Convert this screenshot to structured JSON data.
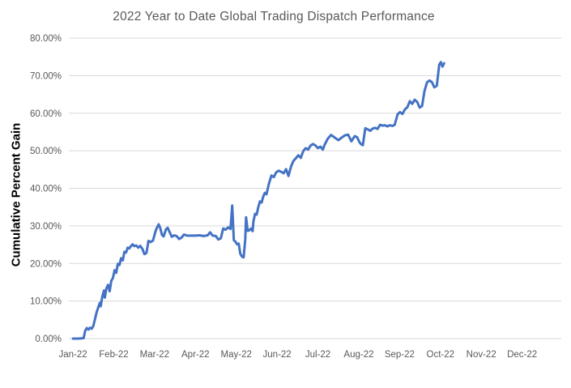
{
  "chart_data": {
    "type": "line",
    "title": "2022 Year to Date Global Trading Dispatch Performance",
    "xlabel": "",
    "ylabel": "Cumulative Percent Gain",
    "x_tick_labels": [
      "Jan-22",
      "Feb-22",
      "Mar-22",
      "Apr-22",
      "May-22",
      "Jun-22",
      "Jul-22",
      "Aug-22",
      "Sep-22",
      "Oct-22",
      "Nov-22",
      "Dec-22"
    ],
    "y_ticks": [
      0,
      10,
      20,
      30,
      40,
      50,
      60,
      70,
      80
    ],
    "y_tick_labels": [
      "0.00%",
      "10.00%",
      "20.00%",
      "30.00%",
      "40.00%",
      "50.00%",
      "60.00%",
      "70.00%",
      "80.00%"
    ],
    "ylim": [
      0,
      80
    ],
    "grid": true,
    "legend": false,
    "colors": {
      "line": "#4472C4",
      "gridline": "#D9D9D9",
      "tick_text": "#595959",
      "title_text": "#595959",
      "y_axis_title_text": "#000000",
      "background": "#FFFFFF"
    },
    "series": [
      {
        "name": "Cumulative Percent Gain",
        "points": [
          [
            0.0,
            0.0
          ],
          [
            0.13,
            0.0
          ],
          [
            0.26,
            0.1
          ],
          [
            0.3,
            2.1
          ],
          [
            0.34,
            2.8
          ],
          [
            0.38,
            2.4
          ],
          [
            0.42,
            2.9
          ],
          [
            0.46,
            2.6
          ],
          [
            0.5,
            3.4
          ],
          [
            0.54,
            5.2
          ],
          [
            0.58,
            7.0
          ],
          [
            0.62,
            8.3
          ],
          [
            0.66,
            9.5
          ],
          [
            0.68,
            8.6
          ],
          [
            0.72,
            11.2
          ],
          [
            0.76,
            12.8
          ],
          [
            0.78,
            10.9
          ],
          [
            0.82,
            13.4
          ],
          [
            0.86,
            14.3
          ],
          [
            0.9,
            12.6
          ],
          [
            0.94,
            15.4
          ],
          [
            0.98,
            16.1
          ],
          [
            1.02,
            18.2
          ],
          [
            1.06,
            17.5
          ],
          [
            1.1,
            19.9
          ],
          [
            1.14,
            19.6
          ],
          [
            1.18,
            21.4
          ],
          [
            1.22,
            20.8
          ],
          [
            1.26,
            23.1
          ],
          [
            1.3,
            22.9
          ],
          [
            1.34,
            24.2
          ],
          [
            1.38,
            24.0
          ],
          [
            1.42,
            24.6
          ],
          [
            1.46,
            25.1
          ],
          [
            1.5,
            24.6
          ],
          [
            1.55,
            24.8
          ],
          [
            1.6,
            24.2
          ],
          [
            1.65,
            24.7
          ],
          [
            1.7,
            23.9
          ],
          [
            1.75,
            22.5
          ],
          [
            1.8,
            22.8
          ],
          [
            1.85,
            26.0
          ],
          [
            1.9,
            25.7
          ],
          [
            1.96,
            26.1
          ],
          [
            2.02,
            28.5
          ],
          [
            2.06,
            29.6
          ],
          [
            2.1,
            30.4
          ],
          [
            2.14,
            29.4
          ],
          [
            2.18,
            27.6
          ],
          [
            2.22,
            27.2
          ],
          [
            2.28,
            29.1
          ],
          [
            2.32,
            29.5
          ],
          [
            2.38,
            28.1
          ],
          [
            2.42,
            27.1
          ],
          [
            2.48,
            27.5
          ],
          [
            2.54,
            27.3
          ],
          [
            2.6,
            26.5
          ],
          [
            2.66,
            26.9
          ],
          [
            2.72,
            27.7
          ],
          [
            2.8,
            27.4
          ],
          [
            2.9,
            27.4
          ],
          [
            3.0,
            27.4
          ],
          [
            3.1,
            27.5
          ],
          [
            3.2,
            27.3
          ],
          [
            3.3,
            27.5
          ],
          [
            3.36,
            28.3
          ],
          [
            3.42,
            27.4
          ],
          [
            3.5,
            27.3
          ],
          [
            3.56,
            26.4
          ],
          [
            3.62,
            26.7
          ],
          [
            3.68,
            29.3
          ],
          [
            3.74,
            29.0
          ],
          [
            3.8,
            29.6
          ],
          [
            3.86,
            29.2
          ],
          [
            3.9,
            35.4
          ],
          [
            3.94,
            26.2
          ],
          [
            3.98,
            25.8
          ],
          [
            4.02,
            25.1
          ],
          [
            4.06,
            25.3
          ],
          [
            4.1,
            22.6
          ],
          [
            4.14,
            21.8
          ],
          [
            4.18,
            21.6
          ],
          [
            4.22,
            26.4
          ],
          [
            4.24,
            32.3
          ],
          [
            4.28,
            28.7
          ],
          [
            4.32,
            28.8
          ],
          [
            4.36,
            29.3
          ],
          [
            4.4,
            28.6
          ],
          [
            4.42,
            31.2
          ],
          [
            4.46,
            33.2
          ],
          [
            4.5,
            33.0
          ],
          [
            4.54,
            35.0
          ],
          [
            4.58,
            36.5
          ],
          [
            4.62,
            36.2
          ],
          [
            4.66,
            37.8
          ],
          [
            4.7,
            38.8
          ],
          [
            4.74,
            38.4
          ],
          [
            4.8,
            41.2
          ],
          [
            4.86,
            43.4
          ],
          [
            4.92,
            43.0
          ],
          [
            4.98,
            44.3
          ],
          [
            5.04,
            44.7
          ],
          [
            5.1,
            44.4
          ],
          [
            5.16,
            44.0
          ],
          [
            5.22,
            45.1
          ],
          [
            5.28,
            43.3
          ],
          [
            5.34,
            45.8
          ],
          [
            5.4,
            47.3
          ],
          [
            5.46,
            48.0
          ],
          [
            5.52,
            48.8
          ],
          [
            5.58,
            48.1
          ],
          [
            5.64,
            49.9
          ],
          [
            5.7,
            50.7
          ],
          [
            5.76,
            50.3
          ],
          [
            5.82,
            51.4
          ],
          [
            5.88,
            51.8
          ],
          [
            5.94,
            51.4
          ],
          [
            6.0,
            50.7
          ],
          [
            6.06,
            51.1
          ],
          [
            6.12,
            50.3
          ],
          [
            6.16,
            51.5
          ],
          [
            6.24,
            53.2
          ],
          [
            6.32,
            54.2
          ],
          [
            6.4,
            53.6
          ],
          [
            6.5,
            52.8
          ],
          [
            6.58,
            53.5
          ],
          [
            6.66,
            54.1
          ],
          [
            6.74,
            54.3
          ],
          [
            6.82,
            52.5
          ],
          [
            6.9,
            53.9
          ],
          [
            6.96,
            53.6
          ],
          [
            7.02,
            52.2
          ],
          [
            7.06,
            51.7
          ],
          [
            7.1,
            51.5
          ],
          [
            7.16,
            56.0
          ],
          [
            7.22,
            55.7
          ],
          [
            7.28,
            55.3
          ],
          [
            7.34,
            55.9
          ],
          [
            7.4,
            56.1
          ],
          [
            7.46,
            55.8
          ],
          [
            7.52,
            56.9
          ],
          [
            7.58,
            56.7
          ],
          [
            7.64,
            56.8
          ],
          [
            7.7,
            56.5
          ],
          [
            7.76,
            56.8
          ],
          [
            7.82,
            56.6
          ],
          [
            7.88,
            56.9
          ],
          [
            7.95,
            59.7
          ],
          [
            8.01,
            60.3
          ],
          [
            8.07,
            59.8
          ],
          [
            8.13,
            61.0
          ],
          [
            8.19,
            61.6
          ],
          [
            8.25,
            63.2
          ],
          [
            8.31,
            62.5
          ],
          [
            8.37,
            63.6
          ],
          [
            8.43,
            63.0
          ],
          [
            8.49,
            61.5
          ],
          [
            8.55,
            61.9
          ],
          [
            8.61,
            65.9
          ],
          [
            8.67,
            68.2
          ],
          [
            8.73,
            68.7
          ],
          [
            8.79,
            68.3
          ],
          [
            8.85,
            66.9
          ],
          [
            8.91,
            67.3
          ],
          [
            8.97,
            72.9
          ],
          [
            9.01,
            73.6
          ],
          [
            9.05,
            72.4
          ],
          [
            9.09,
            73.3
          ]
        ]
      }
    ]
  }
}
